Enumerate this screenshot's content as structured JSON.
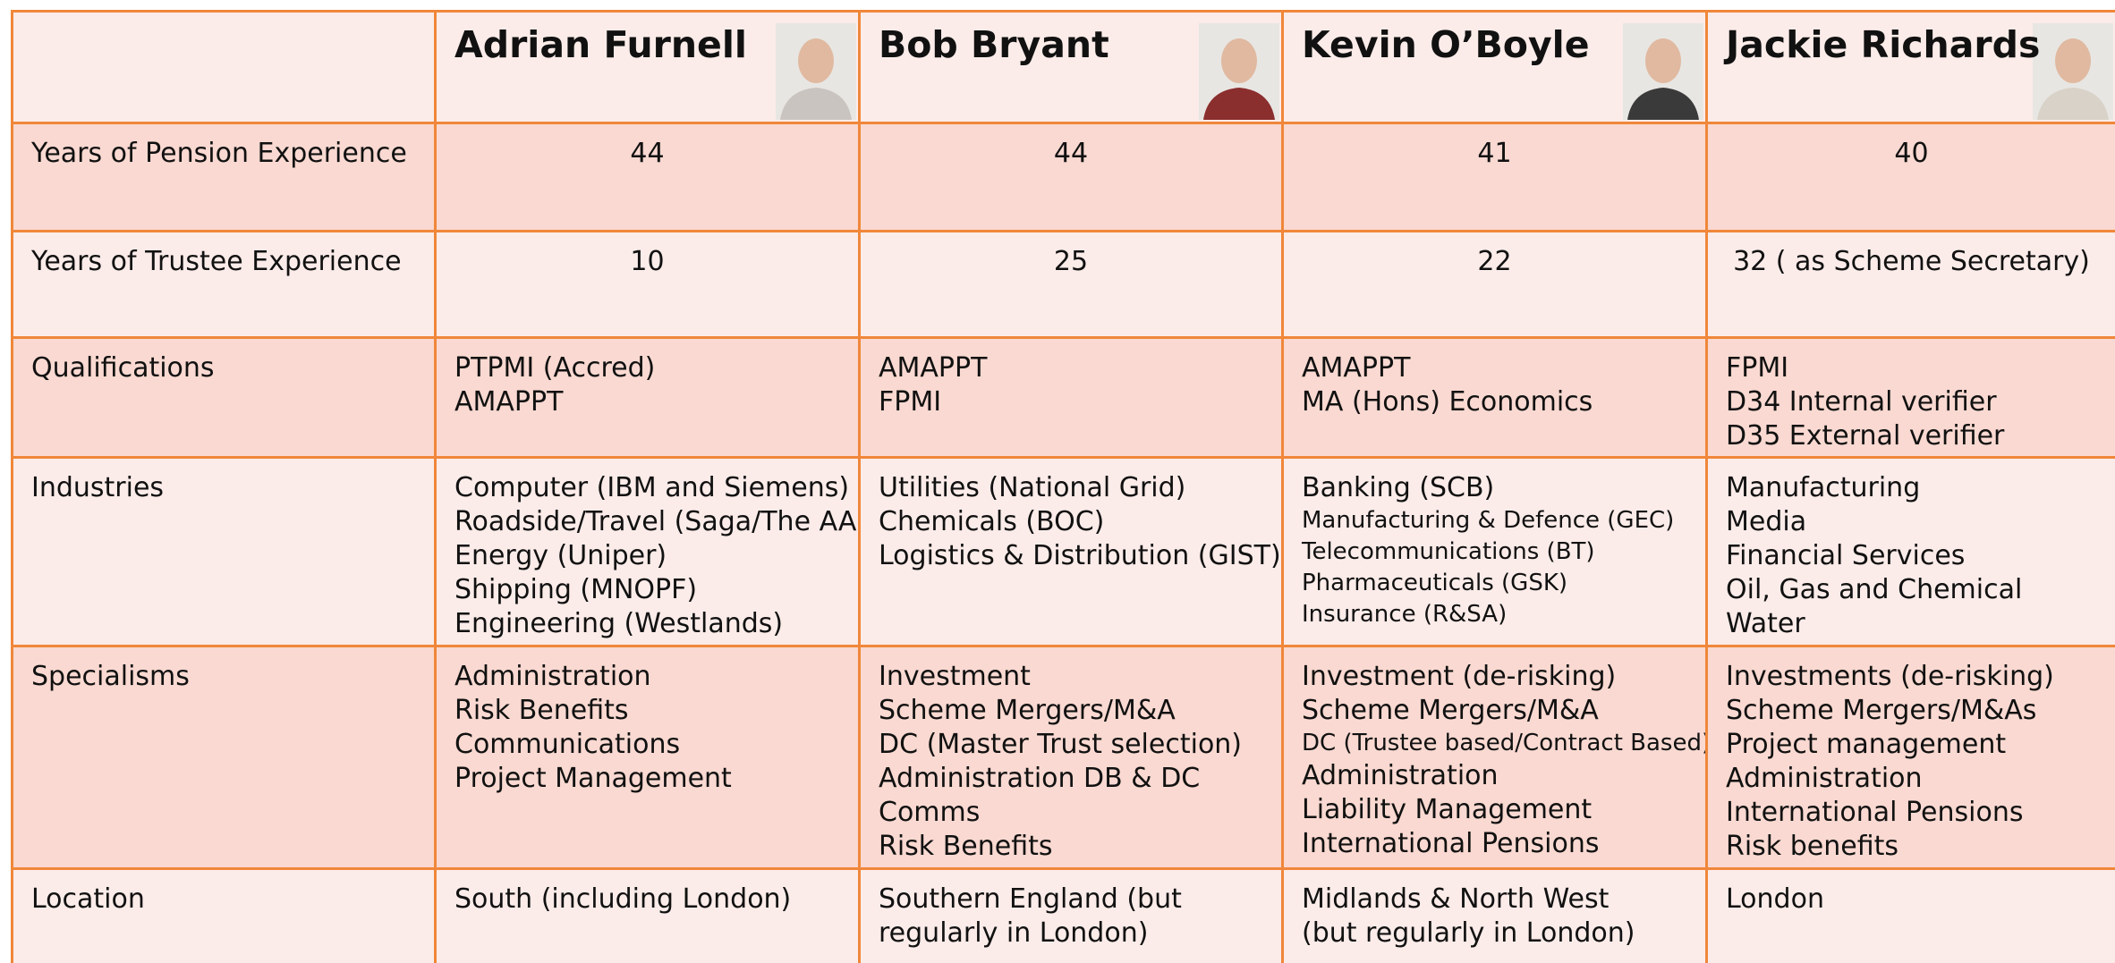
{
  "table": {
    "columns": [
      "Adrian Furnell",
      "Bob Bryant",
      "Kevin O’Boyle",
      "Jackie Richards"
    ],
    "rows": [
      {
        "label": "Years of Pension Experience",
        "cells": [
          [
            "44"
          ],
          [
            "44"
          ],
          [
            "41"
          ],
          [
            "40"
          ]
        ]
      },
      {
        "label": "Years of Trustee Experience",
        "cells": [
          [
            "10"
          ],
          [
            "25"
          ],
          [
            "22"
          ],
          [
            "32 ( as Scheme Secretary)"
          ]
        ]
      },
      {
        "label": "Qualifications",
        "cells": [
          [
            "PTPMI (Accred)",
            "AMAPPT"
          ],
          [
            "AMAPPT",
            "FPMI"
          ],
          [
            "AMAPPT",
            "MA (Hons) Economics"
          ],
          [
            "FPMI",
            "D34 Internal verifier",
            "D35 External verifier"
          ]
        ]
      },
      {
        "label": "Industries",
        "cells": [
          [
            "Computer (IBM and Siemens)",
            "Roadside/Travel (Saga/The AA)",
            "Energy (Uniper)",
            "Shipping (MNOPF)",
            "Engineering (Westlands)"
          ],
          [
            "Utilities (National Grid)",
            "Chemicals (BOC)",
            "Logistics & Distribution (GIST)"
          ],
          [
            "Banking (SCB)",
            "Manufacturing & Defence (GEC)",
            "Telecommunications (BT)",
            "Pharmaceuticals (GSK)",
            "Insurance (R&SA)"
          ],
          [
            "Manufacturing",
            "Media",
            "Financial Services",
            "Oil, Gas and Chemical",
            "Water"
          ]
        ]
      },
      {
        "label": "Specialisms",
        "cells": [
          [
            "Administration",
            "Risk Benefits",
            "Communications",
            "Project Management"
          ],
          [
            "Investment",
            "Scheme Mergers/M&A",
            "DC (Master Trust selection)",
            "Administration DB & DC",
            "Comms",
            "Risk Benefits"
          ],
          [
            "Investment (de-risking)",
            "Scheme Mergers/M&A",
            "DC (Trustee based/Contract Based)",
            "Administration",
            "Liability Management",
            "International Pensions"
          ],
          [
            "Investments (de-risking)",
            "Scheme Mergers/M&As",
            "Project management",
            "Administration",
            "International Pensions",
            "Risk benefits"
          ]
        ]
      },
      {
        "label": "Location",
        "cells": [
          [
            "South (including London)"
          ],
          [
            "Southern England (but",
            "regularly in London)"
          ],
          [
            "Midlands & North West",
            "(but regularly in London)"
          ],
          [
            "London"
          ]
        ]
      }
    ]
  }
}
